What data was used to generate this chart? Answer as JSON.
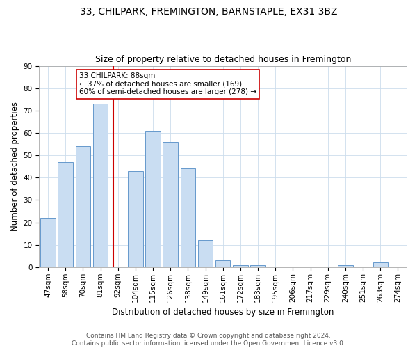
{
  "title": "33, CHILPARK, FREMINGTON, BARNSTAPLE, EX31 3BZ",
  "subtitle": "Size of property relative to detached houses in Fremington",
  "xlabel": "Distribution of detached houses by size in Fremington",
  "ylabel": "Number of detached properties",
  "bar_labels": [
    "47sqm",
    "58sqm",
    "70sqm",
    "81sqm",
    "92sqm",
    "104sqm",
    "115sqm",
    "126sqm",
    "138sqm",
    "149sqm",
    "161sqm",
    "172sqm",
    "183sqm",
    "195sqm",
    "206sqm",
    "217sqm",
    "229sqm",
    "240sqm",
    "251sqm",
    "263sqm",
    "274sqm"
  ],
  "bar_values": [
    22,
    47,
    54,
    73,
    0,
    43,
    61,
    56,
    44,
    12,
    3,
    1,
    1,
    0,
    0,
    0,
    0,
    1,
    0,
    2,
    0
  ],
  "bar_color": "#c9ddf2",
  "bar_edge_color": "#6699cc",
  "highlight_line_color": "#cc0000",
  "annotation_text": "33 CHILPARK: 88sqm\n← 37% of detached houses are smaller (169)\n60% of semi-detached houses are larger (278) →",
  "annotation_box_color": "#ffffff",
  "annotation_box_edge": "#cc0000",
  "footer": "Contains HM Land Registry data © Crown copyright and database right 2024.\nContains public sector information licensed under the Open Government Licence v3.0.",
  "ylim": [
    0,
    90
  ],
  "yticks": [
    0,
    10,
    20,
    30,
    40,
    50,
    60,
    70,
    80,
    90
  ],
  "title_fontsize": 10,
  "subtitle_fontsize": 9,
  "axis_label_fontsize": 8.5,
  "tick_fontsize": 7.5,
  "footer_fontsize": 6.5,
  "annotation_fontsize": 7.5
}
